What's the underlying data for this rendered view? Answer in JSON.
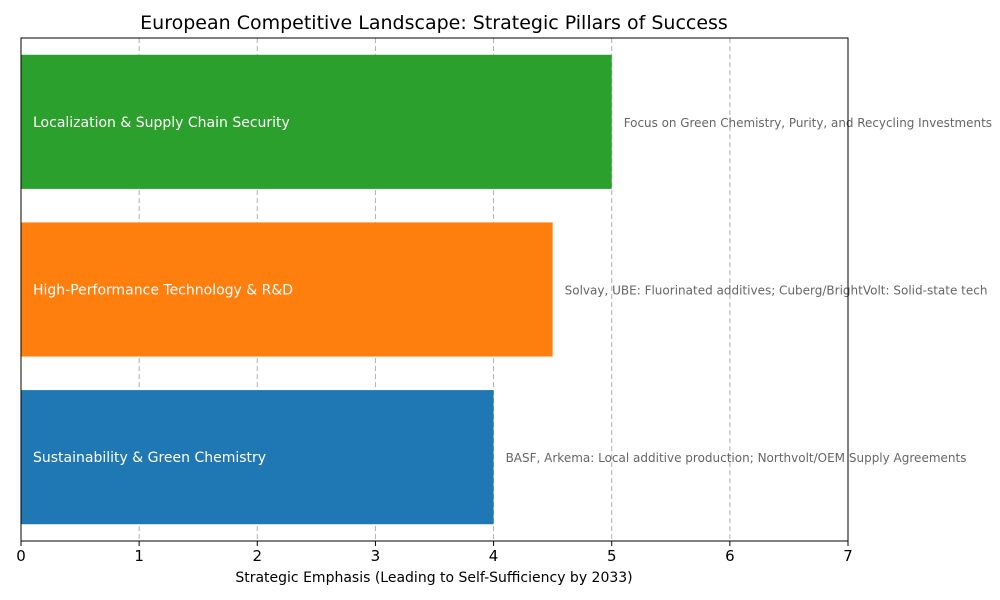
{
  "chart_data": {
    "type": "bar",
    "orientation": "horizontal",
    "title": "European Competitive Landscape: Strategic Pillars of Success",
    "xlabel": "Strategic Emphasis (Leading to Self-Sufficiency by 2033)",
    "ylabel": "",
    "xlim": [
      0,
      7
    ],
    "xticks": [
      0,
      1,
      2,
      3,
      4,
      5,
      6,
      7
    ],
    "grid": "x-axis dashed",
    "categories": [
      "Sustainability & Green Chemistry",
      "High-Performance Technology & R&D",
      "Localization & Supply Chain Security"
    ],
    "values": [
      4,
      4.5,
      5
    ],
    "colors": [
      "#1f77b4",
      "#ff7f0e",
      "#2ca02c"
    ],
    "annotations": [
      "BASF, Arkema: Local additive production; Northvolt/OEM Supply Agreements",
      "Solvay, UBE: Fluorinated additives; Cuberg/BrightVolt: Solid-state tech",
      "Focus on Green Chemistry, Purity, and Recycling Investments"
    ]
  }
}
